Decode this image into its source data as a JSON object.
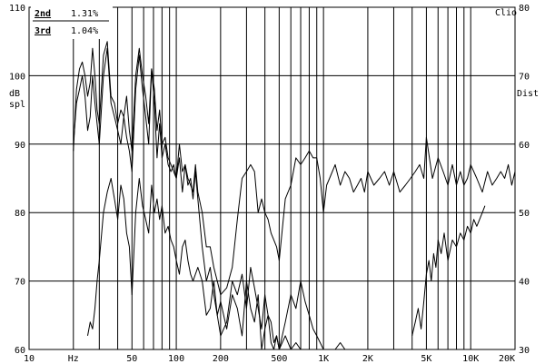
{
  "chart_data": {
    "type": "line",
    "brand": "Clio",
    "x_unit": "Hz",
    "x_scale": "log",
    "xlim": [
      10,
      20000
    ],
    "x_ticks": [
      {
        "value": 10,
        "label": "10"
      },
      {
        "value": 20,
        "label": "Hz"
      },
      {
        "value": 50,
        "label": "50"
      },
      {
        "value": 100,
        "label": "100"
      },
      {
        "value": 200,
        "label": "200"
      },
      {
        "value": 500,
        "label": "500"
      },
      {
        "value": 1000,
        "label": "1K"
      },
      {
        "value": 2000,
        "label": "2K"
      },
      {
        "value": 5000,
        "label": "5K"
      },
      {
        "value": 10000,
        "label": "10K"
      },
      {
        "value": 20000,
        "label": "20K"
      }
    ],
    "ylabel_left": [
      "dB",
      "spl"
    ],
    "ylim_left": [
      60,
      110
    ],
    "y_ticks_left": [
      60,
      70,
      80,
      90,
      100,
      110
    ],
    "ylabel_right": "Dist",
    "ylim_right": [
      30,
      80
    ],
    "y_ticks_right": [
      30,
      40,
      50,
      60,
      70,
      80
    ],
    "grid": true,
    "legend": {
      "placement": "top-left",
      "entries": [
        {
          "label": "2nd",
          "value": "1.31%"
        },
        {
          "label": "3rd",
          "value": "1.04%"
        }
      ]
    },
    "series": [
      {
        "axis": "left",
        "x": [
          20,
          21,
          22,
          23,
          24,
          25,
          26,
          27,
          28,
          29,
          30,
          32,
          34,
          36,
          38,
          40,
          42,
          44,
          46,
          48,
          50,
          53,
          56,
          59,
          62,
          65,
          68,
          71,
          74,
          77,
          80,
          84,
          88,
          92,
          96,
          100,
          105,
          110,
          115,
          120,
          125,
          130,
          135,
          140,
          150,
          160,
          170,
          180,
          190,
          200,
          220,
          240,
          260,
          280,
          300,
          320,
          340,
          360,
          380,
          400,
          420,
          440,
          460,
          480,
          500,
          550,
          600,
          650,
          700,
          750,
          800,
          850,
          900,
          950,
          1000,
          1050,
          1100,
          1200,
          1300,
          1400,
          1500,
          1600,
          1700,
          1800,
          1900,
          2000,
          2200,
          2400,
          2600,
          2800,
          3000,
          3300,
          3600,
          3900,
          4200,
          4500,
          4800,
          5000,
          5500,
          6000,
          6500,
          7000,
          7500,
          8000,
          8500,
          9000,
          9500,
          10000,
          11000,
          12000,
          13000,
          14000,
          15000,
          16000,
          17000,
          18000,
          19000,
          20000
        ],
        "values": [
          89,
          98,
          101,
          102,
          100,
          97,
          99,
          104,
          100,
          95,
          93,
          103,
          105,
          97,
          96,
          93,
          95,
          94,
          97,
          92,
          89,
          100,
          104,
          100,
          97,
          93,
          101,
          98,
          92,
          95,
          90,
          91,
          88,
          87,
          86,
          85,
          90,
          86,
          87,
          85,
          84,
          83,
          87,
          83,
          80,
          75,
          75,
          72,
          70,
          68,
          69,
          72,
          79,
          85,
          86,
          87,
          86,
          80,
          82,
          80,
          79,
          77,
          76,
          75,
          73,
          82,
          84,
          88,
          87,
          88,
          89,
          88,
          88,
          85,
          80,
          84,
          85,
          87,
          84,
          86,
          85,
          83,
          84,
          85,
          83,
          86,
          84,
          85,
          86,
          84,
          86,
          83,
          84,
          85,
          86,
          87,
          85,
          91,
          85,
          88,
          86,
          84,
          87,
          84,
          86,
          84,
          85,
          87,
          85,
          83,
          86,
          84,
          85,
          86,
          85,
          87,
          84,
          86
        ]
      },
      {
        "axis": "right",
        "x": [
          20,
          21,
          22,
          23,
          24,
          25,
          26,
          27,
          28,
          29,
          30,
          32,
          34,
          36,
          38,
          40,
          42,
          44,
          46,
          48,
          50,
          53,
          56,
          59,
          62,
          65,
          68,
          71,
          74,
          77,
          80,
          84,
          88,
          92,
          96,
          100,
          105,
          110,
          115,
          120,
          125,
          130,
          135,
          140,
          150,
          160,
          170,
          180,
          190,
          200,
          220,
          240,
          260,
          280,
          300,
          320,
          340,
          360,
          380,
          400,
          420,
          440,
          460,
          480,
          500,
          550,
          600,
          650,
          700,
          750,
          800,
          850,
          900,
          950,
          1000,
          1100,
          1200,
          1300,
          1400,
          1500
        ],
        "values": [
          60,
          66,
          68,
          70,
          67,
          62,
          64,
          70,
          66,
          63,
          60,
          70,
          74,
          66,
          64,
          62,
          60,
          64,
          61,
          59,
          56,
          68,
          73,
          68,
          64,
          60,
          71,
          66,
          58,
          63,
          58,
          60,
          57,
          56,
          57,
          55,
          58,
          53,
          57,
          54,
          55,
          52,
          56,
          52,
          45,
          40,
          42,
          38,
          35,
          32,
          34,
          40,
          38,
          41,
          36,
          42,
          39,
          36,
          33,
          38,
          35,
          34,
          31,
          32,
          30,
          34,
          38,
          36,
          40,
          37,
          35,
          33,
          32,
          31,
          30,
          30,
          30,
          31,
          30,
          30
        ]
      },
      {
        "axis": "left",
        "x": [
          25,
          26,
          27,
          28,
          29,
          30,
          32,
          34,
          36,
          38,
          40,
          42,
          44,
          46,
          48,
          50,
          53,
          56,
          59,
          62,
          65,
          68,
          71,
          74,
          77,
          80,
          84,
          88,
          92,
          96,
          100,
          105,
          110,
          115,
          120,
          125,
          130,
          140,
          150,
          160,
          170,
          180,
          190,
          200,
          220,
          240,
          260,
          280,
          300,
          320,
          340,
          360,
          380,
          400,
          420,
          440,
          460,
          480,
          500,
          550,
          600,
          650,
          700,
          800,
          900,
          1000
        ],
        "values": [
          62,
          64,
          63,
          66,
          70,
          73,
          80,
          83,
          85,
          82,
          79,
          84,
          82,
          77,
          75,
          68,
          80,
          85,
          81,
          79,
          77,
          84,
          80,
          82,
          79,
          81,
          77,
          78,
          76,
          75,
          73,
          71,
          75,
          76,
          73,
          71,
          70,
          72,
          70,
          65,
          66,
          70,
          65,
          67,
          63,
          68,
          66,
          62,
          70,
          66,
          64,
          68,
          60,
          63,
          65,
          61,
          60,
          62,
          60,
          62,
          60,
          61,
          60,
          60,
          60,
          60
        ]
      },
      {
        "axis": "right",
        "x": [
          4000,
          4200,
          4400,
          4600,
          4800,
          5000,
          5200,
          5400,
          5600,
          5800,
          6000,
          6300,
          6600,
          7000,
          7500,
          8000,
          8500,
          9000,
          9500,
          10000,
          10500,
          11000,
          11500,
          12000,
          12500
        ],
        "values": [
          32,
          34,
          36,
          33,
          37,
          41,
          43,
          40,
          44,
          42,
          46,
          44,
          47,
          43,
          46,
          45,
          47,
          46,
          48,
          47,
          49,
          48,
          49,
          50,
          51
        ]
      }
    ]
  }
}
